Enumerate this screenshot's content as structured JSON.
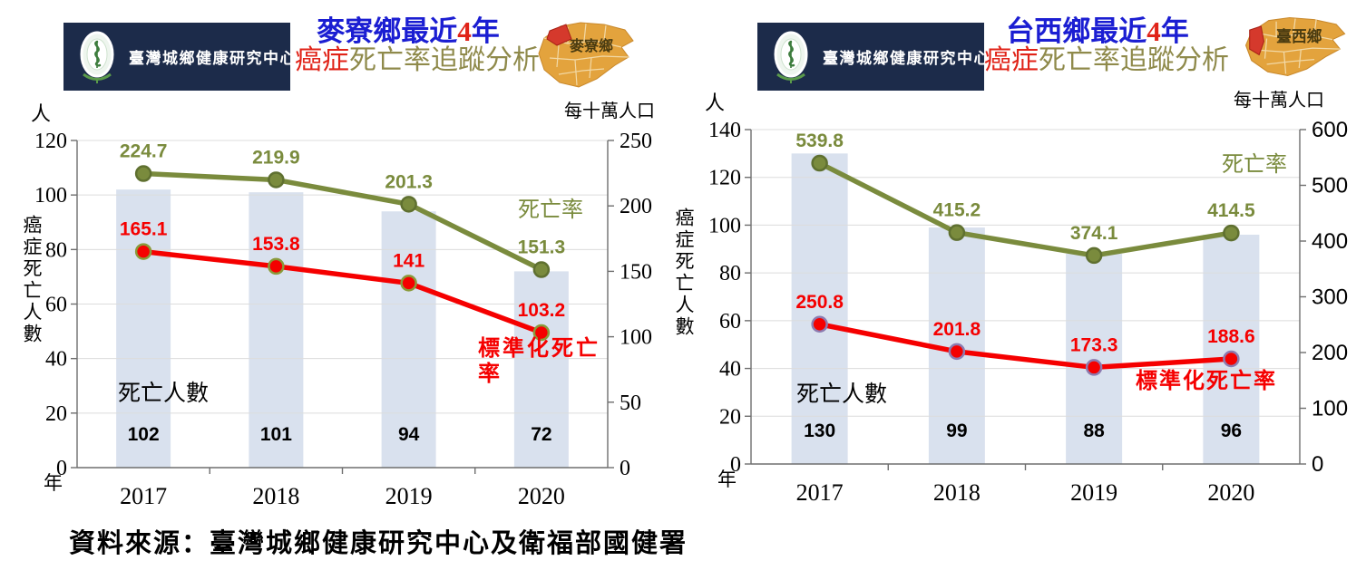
{
  "footer": {
    "source": "資料來源：臺灣城鄉健康研究中心及衛福部國健署"
  },
  "headers": [
    {
      "org": "臺灣城鄉健康研究中心",
      "title_main": "麥寮鄉最近",
      "title_num": "4",
      "title_year": "年",
      "title_sub_red": "癌症",
      "title_sub_rest": "死亡率追蹤分析",
      "map_label": "麥寮鄉"
    },
    {
      "org": "臺灣城鄉健康研究中心",
      "title_main": "台西鄉最近",
      "title_num": "4",
      "title_year": "年",
      "title_sub_red": "癌症",
      "title_sub_rest": "死亡率追蹤分析",
      "map_label": "臺西鄉"
    }
  ],
  "colors": {
    "title_blue": "#1b1ed2",
    "accent_red": "#e02318",
    "line_red": "#f50000",
    "olive_green": "#7a8b3d",
    "title_olive": "#8f8a4b",
    "navy": "#1c2b4a",
    "bar_fill": "#d9e1ee",
    "grid": "#dcdcdc",
    "axis": "#6e6e6e",
    "map_orange": "#e3a33d",
    "map_red": "#d5392c"
  },
  "chart_data": [
    {
      "type": "bar",
      "combo": "bar+line",
      "title": "麥寮鄉最近4年癌症死亡率追蹤分析",
      "categories": [
        "2017",
        "2018",
        "2019",
        "2020"
      ],
      "x_axis_label": "年",
      "grid": true,
      "left_axis": {
        "unit": "人",
        "title": "癌症死亡人數",
        "min": 0,
        "max": 120,
        "step": 20
      },
      "right_axis": {
        "unit": "每十萬人口",
        "min": 0,
        "max": 250,
        "step": 50
      },
      "bar_series": {
        "name": "死亡人數",
        "axis": "left",
        "values": [
          102,
          101,
          94,
          72
        ]
      },
      "line_series": [
        {
          "name": "死亡率",
          "axis": "right",
          "values": [
            224.7,
            219.9,
            201.3,
            151.3
          ],
          "color": "#7a8b3d",
          "marker_ring": "#5f7030"
        },
        {
          "name": "標準化死亡率",
          "axis": "right",
          "values": [
            165.1,
            153.8,
            141,
            103.2
          ],
          "color": "#f50000",
          "marker_ring": "#8a9a3a"
        }
      ]
    },
    {
      "type": "bar",
      "combo": "bar+line",
      "title": "台西鄉最近4年癌症死亡率追蹤分析",
      "categories": [
        "2017",
        "2018",
        "2019",
        "2020"
      ],
      "x_axis_label": "年",
      "grid": true,
      "left_axis": {
        "unit": "人",
        "title": "癌症死亡人數",
        "min": 0,
        "max": 140,
        "step": 20
      },
      "right_axis": {
        "unit": "每十萬人口",
        "min": 0,
        "max": 600,
        "step": 100
      },
      "bar_series": {
        "name": "死亡人數",
        "axis": "left",
        "values": [
          130,
          99,
          88,
          96
        ]
      },
      "line_series": [
        {
          "name": "死亡率",
          "axis": "right",
          "values": [
            539.8,
            415.2,
            374.1,
            414.5
          ],
          "color": "#7a8b3d",
          "marker_ring": "#5f7030"
        },
        {
          "name": "標準化死亡率",
          "axis": "right",
          "values": [
            250.8,
            201.8,
            173.3,
            188.6
          ],
          "color": "#f50000",
          "marker_ring": "#8d7bb0"
        }
      ]
    }
  ]
}
